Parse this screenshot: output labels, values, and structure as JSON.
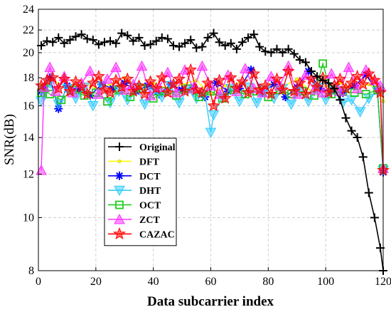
{
  "chart_data": {
    "type": "line",
    "title": "",
    "xlabel": "Data subcarrier index",
    "ylabel": "SNR(dB)",
    "xlim": [
      0,
      120
    ],
    "ylim": [
      8,
      24
    ],
    "y_scale": "log",
    "xticks": [
      0,
      20,
      40,
      60,
      80,
      100,
      120
    ],
    "yticks": [
      8,
      10,
      12,
      14,
      16,
      18,
      20,
      22,
      24
    ],
    "grid": true,
    "legend_position": "bottom-left",
    "series": [
      {
        "name": "Original",
        "color": "#000000",
        "marker": "plus",
        "x": [
          1,
          3,
          5,
          7,
          9,
          11,
          13,
          15,
          17,
          19,
          21,
          23,
          25,
          27,
          29,
          31,
          33,
          35,
          37,
          39,
          41,
          43,
          45,
          47,
          49,
          51,
          53,
          55,
          57,
          59,
          61,
          63,
          65,
          67,
          69,
          71,
          73,
          75,
          77,
          79,
          81,
          83,
          85,
          87,
          89,
          91,
          93,
          95,
          97,
          99,
          101,
          103,
          105,
          107,
          109,
          111,
          113,
          115,
          117,
          119,
          120
        ],
        "y": [
          20.6,
          21.0,
          20.9,
          21.3,
          20.8,
          21.1,
          21.4,
          21.6,
          21.2,
          21.1,
          20.7,
          20.9,
          21.0,
          20.8,
          21.7,
          21.5,
          21.0,
          21.3,
          20.6,
          20.7,
          21.0,
          21.3,
          21.2,
          20.6,
          20.5,
          20.8,
          21.1,
          20.4,
          20.5,
          21.3,
          21.7,
          20.9,
          20.6,
          20.8,
          20.3,
          20.9,
          21.3,
          21.6,
          20.5,
          20.1,
          20.0,
          20.3,
          20.0,
          20.3,
          19.9,
          19.4,
          19.2,
          18.5,
          18.1,
          17.8,
          17.6,
          17.2,
          16.4,
          15.2,
          14.4,
          14.0,
          12.9,
          11.1,
          10.0,
          8.8,
          8.0
        ]
      },
      {
        "name": "DFT",
        "color": "#ffff00",
        "marker": "point",
        "x": [
          1,
          2,
          5,
          10,
          15,
          20,
          25,
          30,
          35,
          40,
          45,
          50,
          55,
          60,
          65,
          70,
          75,
          80,
          85,
          90,
          95,
          100,
          105,
          110,
          115,
          119,
          120
        ],
        "y": [
          17.1,
          17.4,
          17.8,
          17.3,
          17.7,
          17.2,
          17.5,
          18.0,
          17.3,
          17.6,
          17.2,
          17.5,
          17.8,
          16.8,
          17.4,
          17.6,
          17.1,
          17.5,
          17.3,
          17.9,
          17.0,
          17.4,
          17.6,
          17.2,
          17.5,
          17.0,
          16.3
        ]
      },
      {
        "name": "DCT",
        "color": "#0000ff",
        "marker": "star",
        "x": [
          1,
          2,
          4,
          7,
          10,
          14,
          18,
          22,
          26,
          30,
          34,
          38,
          42,
          46,
          50,
          54,
          58,
          62,
          66,
          70,
          74,
          78,
          82,
          86,
          90,
          94,
          98,
          102,
          106,
          110,
          114,
          118,
          120
        ],
        "y": [
          17.0,
          17.3,
          18.0,
          15.8,
          17.4,
          17.1,
          16.7,
          17.5,
          17.2,
          17.6,
          17.0,
          17.4,
          16.8,
          17.5,
          17.1,
          17.3,
          16.6,
          17.6,
          17.0,
          17.2,
          18.6,
          16.9,
          17.5,
          16.6,
          17.3,
          18.5,
          17.2,
          17.0,
          16.9,
          17.4,
          18.2,
          17.0,
          12.1
        ]
      },
      {
        "name": "DHT",
        "color": "#33ccff",
        "marker": "triangle-down",
        "x": [
          1,
          2,
          4,
          7,
          10,
          13,
          16,
          19,
          22,
          25,
          28,
          31,
          34,
          37,
          40,
          43,
          46,
          49,
          52,
          55,
          58,
          60,
          61,
          64,
          67,
          70,
          73,
          76,
          79,
          82,
          85,
          88,
          91,
          94,
          97,
          100,
          103,
          106,
          109,
          112,
          115,
          118,
          120
        ],
        "y": [
          16.3,
          16.8,
          17.6,
          16.1,
          17.2,
          16.5,
          17.3,
          16.0,
          17.4,
          16.2,
          17.0,
          16.4,
          17.3,
          16.1,
          17.0,
          16.6,
          17.4,
          16.2,
          17.1,
          16.5,
          16.8,
          14.3,
          15.4,
          16.6,
          17.2,
          16.3,
          17.3,
          16.2,
          17.1,
          16.5,
          17.2,
          16.1,
          17.0,
          16.3,
          17.3,
          16.4,
          17.1,
          16.2,
          16.4,
          15.6,
          16.5,
          17.0,
          12.2
        ]
      },
      {
        "name": "OCT",
        "color": "#22cc22",
        "marker": "square",
        "x": [
          1,
          2,
          4,
          8,
          12,
          16,
          20,
          24,
          28,
          32,
          36,
          40,
          44,
          48,
          52,
          56,
          60,
          64,
          68,
          72,
          76,
          80,
          84,
          88,
          92,
          96,
          99,
          102,
          106,
          110,
          114,
          118,
          120
        ],
        "y": [
          16.9,
          17.2,
          16.8,
          16.4,
          17.1,
          16.7,
          16.9,
          16.3,
          17.1,
          16.6,
          17.2,
          16.5,
          17.0,
          16.7,
          17.2,
          16.6,
          17.0,
          16.5,
          17.1,
          16.8,
          17.0,
          16.6,
          17.1,
          16.8,
          17.0,
          16.7,
          19.1,
          16.8,
          17.0,
          16.9,
          16.8,
          17.1,
          12.3
        ]
      },
      {
        "name": "ZCT",
        "color": "#ff33ff",
        "marker": "triangle-up",
        "x": [
          1,
          2,
          4,
          6,
          9,
          12,
          15,
          18,
          21,
          24,
          27,
          30,
          33,
          36,
          39,
          42,
          45,
          48,
          51,
          54,
          57,
          60,
          63,
          66,
          69,
          72,
          75,
          78,
          81,
          84,
          87,
          90,
          93,
          96,
          99,
          102,
          105,
          108,
          111,
          114,
          117,
          119,
          120
        ],
        "y": [
          12.2,
          17.3,
          18.8,
          17.0,
          18.1,
          16.9,
          17.6,
          18.5,
          16.8,
          17.9,
          18.8,
          17.1,
          17.5,
          18.9,
          16.7,
          17.3,
          18.4,
          16.9,
          18.6,
          17.2,
          18.9,
          17.4,
          16.8,
          18.2,
          17.0,
          18.7,
          17.2,
          16.9,
          18.1,
          17.4,
          18.9,
          16.8,
          18.2,
          17.1,
          16.9,
          18.3,
          17.0,
          18.8,
          17.2,
          18.6,
          17.8,
          17.4,
          12.3
        ]
      },
      {
        "name": "CAZAC",
        "color": "#ff0000",
        "marker": "hexagram",
        "x": [
          1,
          3,
          5,
          7,
          9,
          11,
          13,
          15,
          17,
          19,
          21,
          23,
          25,
          27,
          29,
          31,
          33,
          35,
          37,
          39,
          41,
          43,
          45,
          47,
          49,
          51,
          53,
          55,
          57,
          59,
          61,
          63,
          65,
          67,
          69,
          71,
          73,
          75,
          77,
          79,
          81,
          83,
          85,
          87,
          89,
          91,
          93,
          95,
          97,
          99,
          101,
          103,
          105,
          107,
          109,
          111,
          113,
          115,
          117,
          119,
          120
        ],
        "y": [
          17.4,
          17.8,
          18.0,
          17.2,
          17.9,
          17.0,
          17.7,
          17.3,
          16.8,
          17.6,
          18.1,
          17.1,
          16.9,
          17.8,
          17.3,
          17.9,
          17.0,
          17.4,
          16.8,
          17.7,
          17.2,
          18.0,
          16.9,
          17.5,
          17.9,
          17.0,
          18.6,
          17.1,
          16.9,
          17.6,
          16.0,
          17.8,
          16.5,
          18.0,
          17.2,
          17.7,
          16.9,
          18.3,
          17.1,
          17.4,
          16.8,
          17.9,
          17.1,
          18.5,
          17.0,
          17.6,
          16.8,
          17.9,
          17.3,
          18.0,
          16.9,
          17.4,
          17.9,
          17.2,
          17.6,
          18.1,
          17.5,
          18.3,
          17.8,
          16.9,
          12.2
        ]
      }
    ]
  }
}
